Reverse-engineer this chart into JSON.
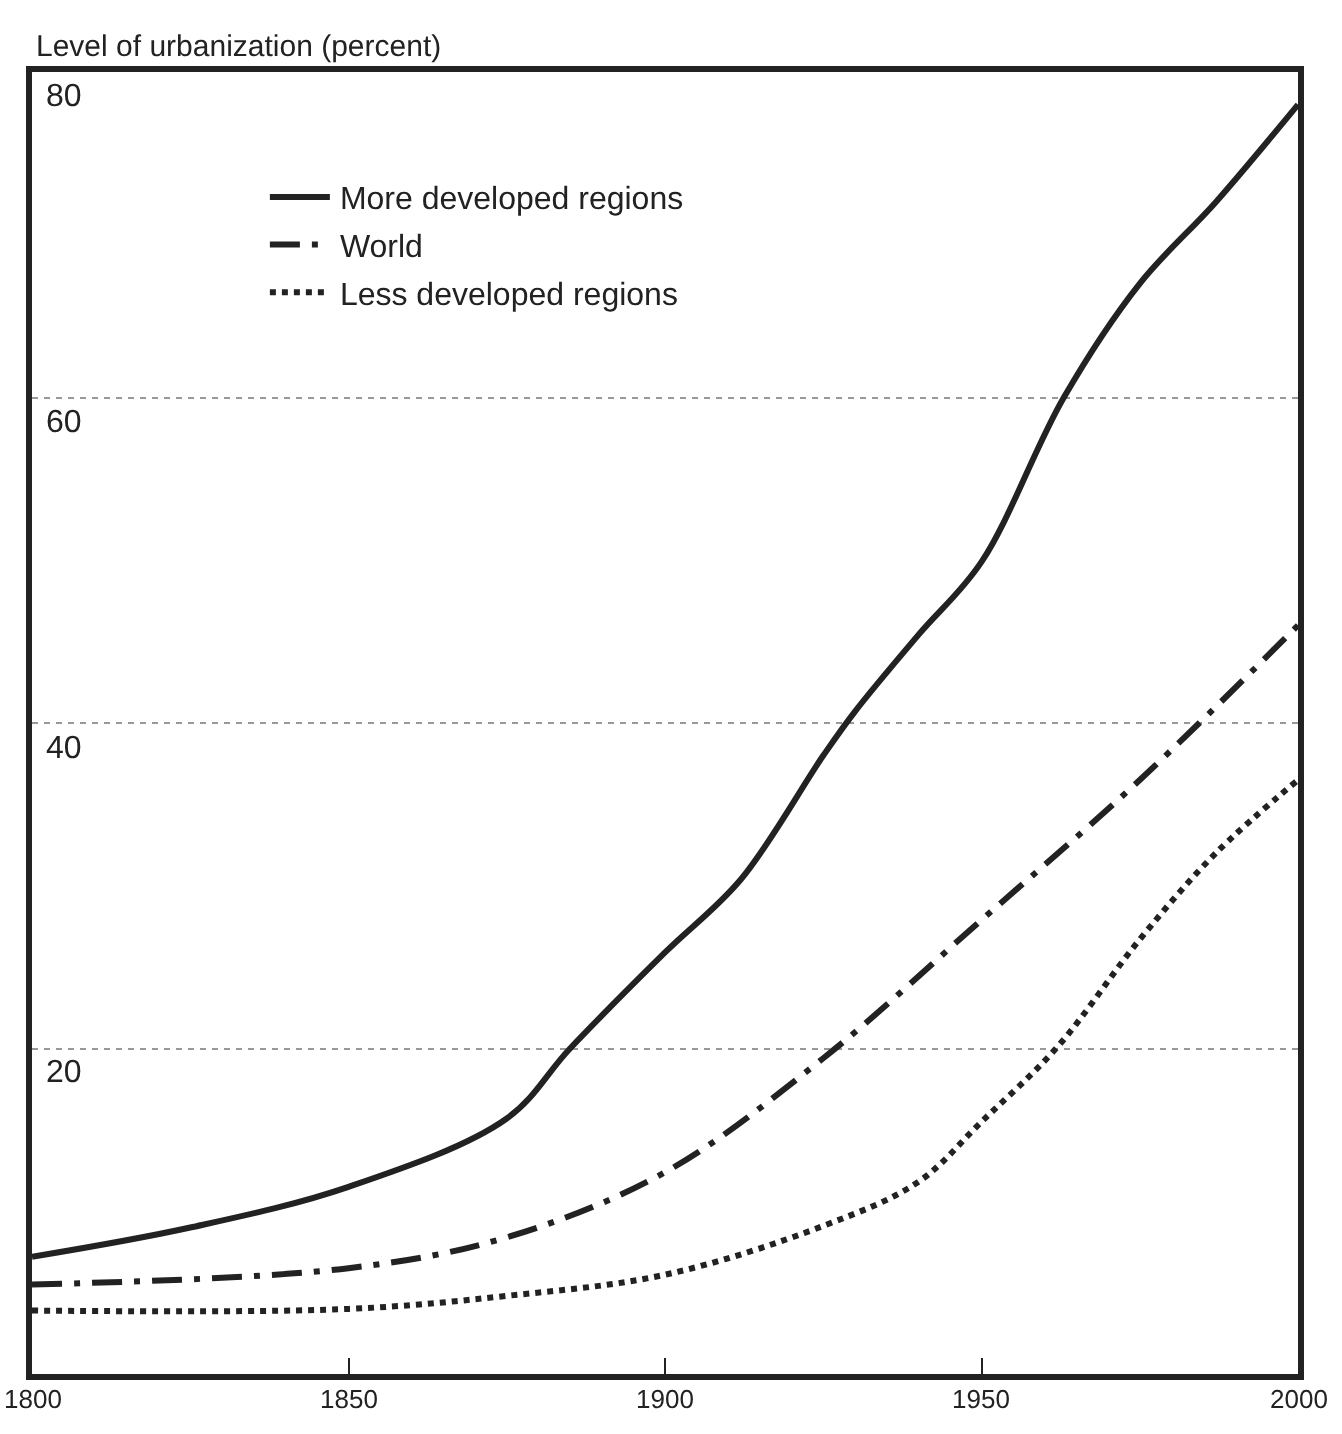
{
  "chart_data": {
    "type": "line",
    "ylabel": "Level of urbanization (percent)",
    "xlim": [
      1800,
      2000
    ],
    "xticks": [
      1800,
      1850,
      1900,
      1950,
      2000
    ],
    "ylim": [
      0,
      80
    ],
    "yticks": [
      20,
      40,
      60,
      80
    ],
    "grid": "y",
    "legend": "top left",
    "marker": "none",
    "series": [
      {
        "name": "More developed regions",
        "color": "#222222",
        "line_style": "solid",
        "x": [
          1800,
          1825,
          1850,
          1875,
          1885,
          1900,
          1912,
          1925,
          1930,
          1940,
          1950,
          1963,
          1975,
          1987,
          2000
        ],
        "values": [
          7.2,
          9.0,
          11.5,
          15.7,
          20,
          25.9,
          30.4,
          38,
          40.7,
          45.4,
          49.9,
          60,
          67,
          72,
          78
        ]
      },
      {
        "name": "World",
        "color": "#222222",
        "line_style": "dashdot",
        "x": [
          1800,
          1850,
          1875,
          1900,
          1925,
          1950,
          1975,
          2000
        ],
        "values": [
          5.5,
          6.5,
          8.4,
          12.4,
          19.4,
          27.9,
          36.5,
          46
        ]
      },
      {
        "name": "Less developed regions",
        "color": "#222222",
        "line_style": "dotted",
        "x": [
          1800,
          1850,
          1875,
          1900,
          1925,
          1940,
          1950,
          1962,
          1975,
          1987,
          2000
        ],
        "values": [
          3.9,
          4.0,
          4.8,
          6.1,
          9.1,
          11.8,
          15.5,
          20.1,
          26.7,
          32,
          36.5
        ]
      }
    ]
  }
}
